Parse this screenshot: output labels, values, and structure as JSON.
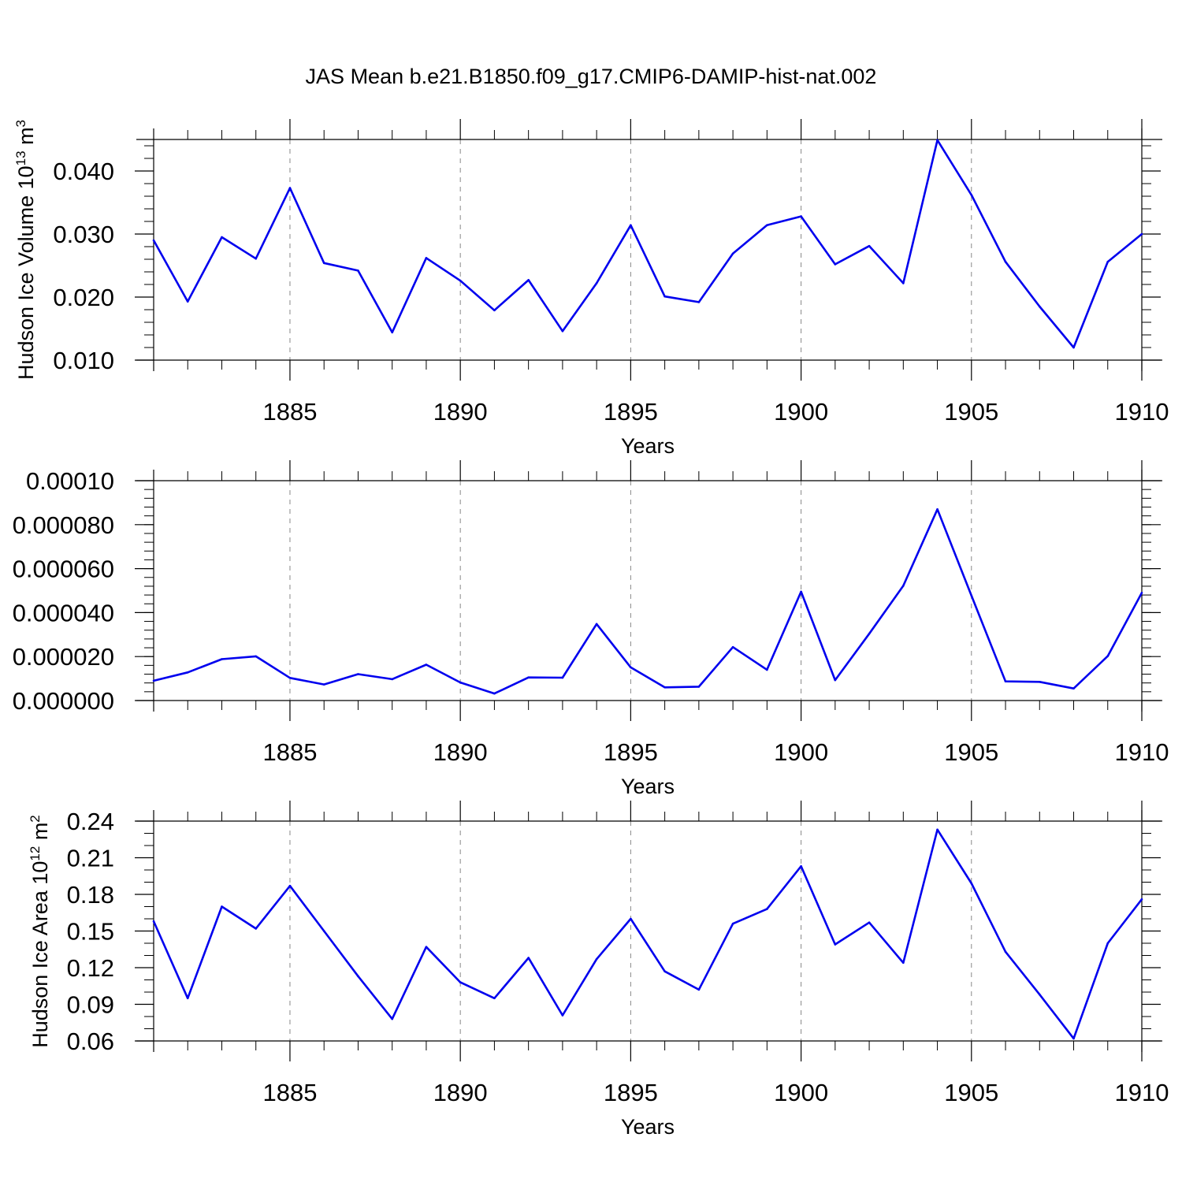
{
  "title": "JAS Mean b.e21.B1850.f09_g17.CMIP6-DAMIP-hist-nat.002",
  "colors": {
    "series": "#0000ee",
    "grid": "#888888",
    "axis": "#000000"
  },
  "chart_data": [
    {
      "type": "line",
      "title": "JAS Mean b.e21.B1850.f09_g17.CMIP6-DAMIP-hist-nat.002",
      "xlabel": "Years",
      "ylabel": "Hudson Ice Volume 10",
      "ylabel_exp": "13",
      "ylabel_unit": " m",
      "ylabel_unit_exp": "3",
      "xlim": [
        1881,
        1910
      ],
      "ylim": [
        0.01,
        0.045
      ],
      "x_ticks": [
        1885,
        1890,
        1895,
        1900,
        1905,
        1910
      ],
      "x_tick_labels": [
        "1885",
        "1890",
        "1895",
        "1900",
        "1905",
        "1910"
      ],
      "y_ticks": [
        0.01,
        0.02,
        0.03,
        0.04
      ],
      "y_tick_labels": [
        "0.010",
        "0.020",
        "0.030",
        "0.040"
      ],
      "y_minor_step": 0.002,
      "grid": "x-dashed",
      "x": [
        1881,
        1882,
        1883,
        1884,
        1885,
        1886,
        1887,
        1888,
        1889,
        1890,
        1891,
        1892,
        1893,
        1894,
        1895,
        1896,
        1897,
        1898,
        1899,
        1900,
        1901,
        1902,
        1903,
        1904,
        1905,
        1906,
        1907,
        1908,
        1909,
        1910
      ],
      "values": [
        0.029,
        0.0193,
        0.0295,
        0.0261,
        0.0373,
        0.0254,
        0.0242,
        0.0144,
        0.0262,
        0.0226,
        0.0179,
        0.0227,
        0.0146,
        0.0222,
        0.0314,
        0.0201,
        0.0192,
        0.0269,
        0.0314,
        0.0328,
        0.0252,
        0.0281,
        0.0222,
        0.0449,
        0.0362,
        0.0256,
        0.0185,
        0.012,
        0.0256,
        0.03
      ]
    },
    {
      "type": "line",
      "xlabel": "Years",
      "ylabel": "",
      "xlim": [
        1881,
        1910
      ],
      "ylim": [
        0.0,
        0.0001
      ],
      "x_ticks": [
        1885,
        1890,
        1895,
        1900,
        1905,
        1910
      ],
      "x_tick_labels": [
        "1885",
        "1890",
        "1895",
        "1900",
        "1905",
        "1910"
      ],
      "y_ticks": [
        0.0,
        2e-05,
        4e-05,
        6e-05,
        8e-05,
        0.0001
      ],
      "y_tick_labels": [
        "0.000000",
        "0.000020",
        "0.000040",
        "0.000060",
        "0.000080",
        "0.00010"
      ],
      "y_minor_step": 4e-06,
      "grid": "x-dashed",
      "x": [
        1881,
        1882,
        1883,
        1884,
        1885,
        1886,
        1887,
        1888,
        1889,
        1890,
        1891,
        1892,
        1893,
        1894,
        1895,
        1896,
        1897,
        1898,
        1899,
        1900,
        1901,
        1902,
        1903,
        1904,
        1905,
        1906,
        1907,
        1908,
        1909,
        1910
      ],
      "values": [
        9e-06,
        1.28e-05,
        1.88e-05,
        2.01e-05,
        1.03e-05,
        7.3e-06,
        1.2e-05,
        9.7e-06,
        1.63e-05,
        8.2e-06,
        3.2e-06,
        1.05e-05,
        1.04e-05,
        3.48e-05,
        1.51e-05,
        6e-06,
        6.3e-06,
        2.43e-05,
        1.4e-05,
        4.95e-05,
        9.3e-06,
        3.04e-05,
        5.22e-05,
        8.7e-05,
        4.77e-05,
        8.7e-06,
        8.5e-06,
        5.5e-06,
        2.02e-05,
        4.9e-05
      ]
    },
    {
      "type": "line",
      "xlabel": "Years",
      "ylabel": "Hudson Ice Area 10",
      "ylabel_exp": "12",
      "ylabel_unit": " m",
      "ylabel_unit_exp": "2",
      "xlim": [
        1881,
        1910
      ],
      "ylim": [
        0.06,
        0.24
      ],
      "x_ticks": [
        1885,
        1890,
        1895,
        1900,
        1905,
        1910
      ],
      "x_tick_labels": [
        "1885",
        "1890",
        "1895",
        "1900",
        "1905",
        "1910"
      ],
      "y_ticks": [
        0.06,
        0.09,
        0.12,
        0.15,
        0.18,
        0.21,
        0.24
      ],
      "y_tick_labels": [
        "0.06",
        "0.09",
        "0.12",
        "0.15",
        "0.18",
        "0.21",
        "0.24"
      ],
      "y_minor_step": 0.01,
      "grid": "x-dashed",
      "x": [
        1881,
        1882,
        1883,
        1884,
        1885,
        1886,
        1887,
        1888,
        1889,
        1890,
        1891,
        1892,
        1893,
        1894,
        1895,
        1896,
        1897,
        1898,
        1899,
        1900,
        1901,
        1902,
        1903,
        1904,
        1905,
        1906,
        1907,
        1908,
        1909,
        1910
      ],
      "values": [
        0.158,
        0.095,
        0.17,
        0.152,
        0.187,
        0.15,
        0.113,
        0.078,
        0.137,
        0.108,
        0.095,
        0.128,
        0.081,
        0.127,
        0.16,
        0.117,
        0.102,
        0.156,
        0.168,
        0.203,
        0.139,
        0.157,
        0.124,
        0.233,
        0.189,
        0.133,
        0.098,
        0.062,
        0.14,
        0.176
      ]
    }
  ]
}
